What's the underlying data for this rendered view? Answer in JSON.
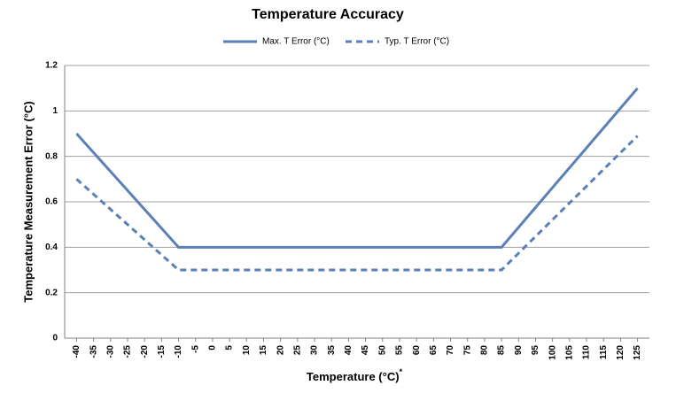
{
  "chart_data": {
    "type": "line",
    "title": "Temperature Accuracy",
    "xlabel": "Temperature (°C)",
    "xlabel_superscript": "*",
    "ylabel": "Temperature Measurement Error (°C)",
    "x": [
      -40,
      -10,
      85,
      125
    ],
    "series": [
      {
        "name": "Max. T Error (°C)",
        "color": "#5b7fb8",
        "dash": false,
        "values": [
          0.9,
          0.4,
          0.4,
          1.1
        ]
      },
      {
        "name": "Typ. T Error (°C)",
        "color": "#5b7fb8",
        "dash": true,
        "values": [
          0.7,
          0.3,
          0.3,
          0.89
        ]
      }
    ],
    "xlim": [
      -43.5,
      128.5
    ],
    "xticks": [
      -40,
      -35,
      -30,
      -25,
      -20,
      -15,
      -10,
      -5,
      0,
      5,
      10,
      15,
      20,
      25,
      30,
      35,
      40,
      45,
      50,
      55,
      60,
      65,
      70,
      75,
      80,
      85,
      90,
      95,
      100,
      105,
      110,
      115,
      120,
      125
    ],
    "ylim": [
      0,
      1.2
    ],
    "yticks": [
      0,
      0.2,
      0.4,
      0.6,
      0.8,
      1,
      1.2
    ],
    "grid": true,
    "legend": "top"
  }
}
